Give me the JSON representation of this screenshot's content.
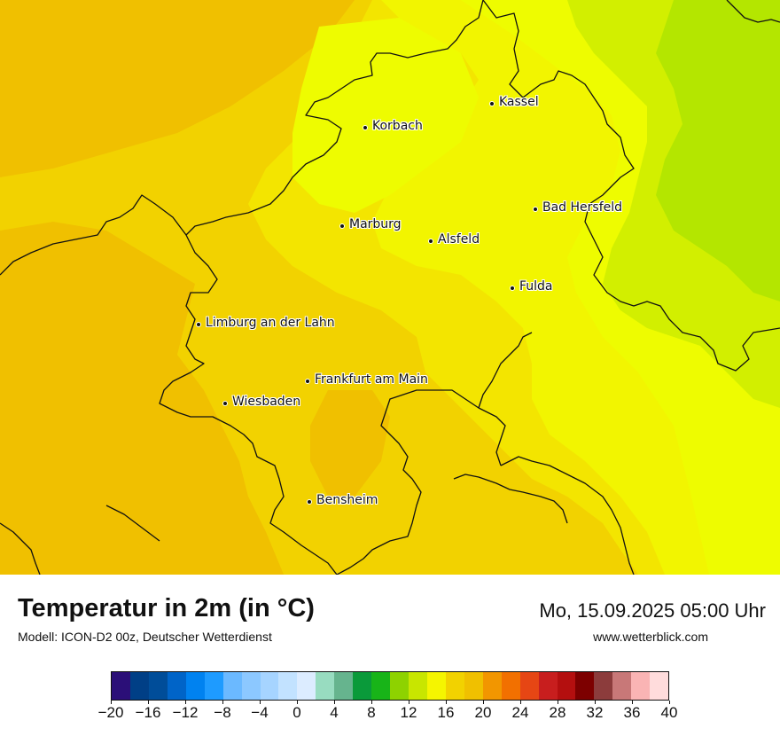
{
  "map": {
    "field_colors": {
      "c20": "#f0c000",
      "c18": "#f2d200",
      "c16": "#f3e500",
      "c15": "#f2f500",
      "c14": "#eefc00",
      "c12": "#d2ef00",
      "c11": "#b4e600"
    },
    "cities": [
      {
        "name": "Kassel"
      },
      {
        "name": "Korbach"
      },
      {
        "name": "Bad Hersfeld"
      },
      {
        "name": "Marburg"
      },
      {
        "name": "Alsfeld"
      },
      {
        "name": "Fulda"
      },
      {
        "name": "Limburg an der Lahn"
      },
      {
        "name": "Frankfurt am Main"
      },
      {
        "name": "Wiesbaden"
      },
      {
        "name": "Bensheim"
      }
    ]
  },
  "footer": {
    "title": "Temperatur in 2m (in °C)",
    "model": "Modell: ICON-D2 00z, Deutscher Wetterdienst",
    "datetime": "Mo, 15.09.2025 05:00 Uhr",
    "site": "www.wetterblick.com"
  },
  "legend": {
    "unit": "°C",
    "range": [
      -20,
      40
    ],
    "step": 2,
    "colors": [
      "#2b0f78",
      "#003f86",
      "#004d99",
      "#0064c8",
      "#0082f0",
      "#1e9bff",
      "#6bb9ff",
      "#8cc8ff",
      "#a6d4ff",
      "#c2e2ff",
      "#dcecff",
      "#98dcc0",
      "#66b48e",
      "#0a9a3a",
      "#18b418",
      "#8ed200",
      "#c8e600",
      "#f5f500",
      "#f2d200",
      "#f0c000",
      "#f29600",
      "#f27000",
      "#e64614",
      "#c81e1e",
      "#b40f0f",
      "#7d0000",
      "#8c3c3c",
      "#c87878",
      "#fab4b4",
      "#ffdcdc"
    ],
    "tick_labels": [
      "−20",
      "−16",
      "−12",
      "−8",
      "−4",
      "0",
      "4",
      "8",
      "12",
      "16",
      "20",
      "24",
      "28",
      "32",
      "36",
      "40"
    ]
  }
}
